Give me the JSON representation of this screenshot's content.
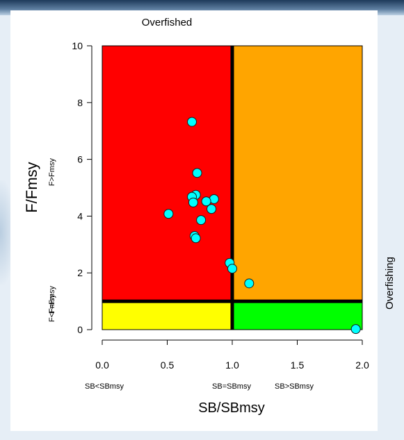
{
  "chart_data": {
    "type": "scatter",
    "title": "Overfished",
    "xlabel": "SB/SBmsy",
    "ylabel": "F/Fmsy",
    "right_label": "Overfishing",
    "xlim": [
      0,
      2
    ],
    "ylim": [
      0,
      10
    ],
    "x_ticks": [
      0.0,
      0.5,
      1.0,
      1.5,
      2.0
    ],
    "x_tick_labels": [
      "0.0",
      "0.5",
      "1.0",
      "1.5",
      "2.0"
    ],
    "y_ticks": [
      0,
      2,
      4,
      6,
      8,
      10
    ],
    "y_tick_labels": [
      "0",
      "2",
      "4",
      "6",
      "8",
      "10"
    ],
    "reference_lines": {
      "sb_ratio": 1.0,
      "f_ratio": 1.0
    },
    "quadrants": {
      "overfished_overfishing": "#ff0000",
      "healthy_overfishing": "#ffa500",
      "overfished_no_overfishing": "#ffff00",
      "healthy_no_overfishing": "#00ff00"
    },
    "region_labels": {
      "sb_below": "SB<SBmsy",
      "sb_equal": "SB=SBmsy",
      "sb_above": "SB>SBmsy",
      "f_above": "F>Fmsy",
      "f_below": "F<Fmsy",
      "f_equal": "F=Fmsy"
    },
    "point_color": "#00ffff",
    "grid": false,
    "points": [
      {
        "x": 0.69,
        "y": 7.32
      },
      {
        "x": 0.73,
        "y": 5.52
      },
      {
        "x": 0.72,
        "y": 4.75
      },
      {
        "x": 0.69,
        "y": 4.68
      },
      {
        "x": 0.7,
        "y": 4.48
      },
      {
        "x": 0.86,
        "y": 4.6
      },
      {
        "x": 0.8,
        "y": 4.52
      },
      {
        "x": 0.84,
        "y": 4.25
      },
      {
        "x": 0.51,
        "y": 4.08
      },
      {
        "x": 0.76,
        "y": 3.86
      },
      {
        "x": 0.71,
        "y": 3.3
      },
      {
        "x": 0.72,
        "y": 3.22
      },
      {
        "x": 0.98,
        "y": 2.35
      },
      {
        "x": 1.0,
        "y": 2.15
      },
      {
        "x": 1.13,
        "y": 1.63
      },
      {
        "x": 1.95,
        "y": 0.02
      }
    ]
  }
}
